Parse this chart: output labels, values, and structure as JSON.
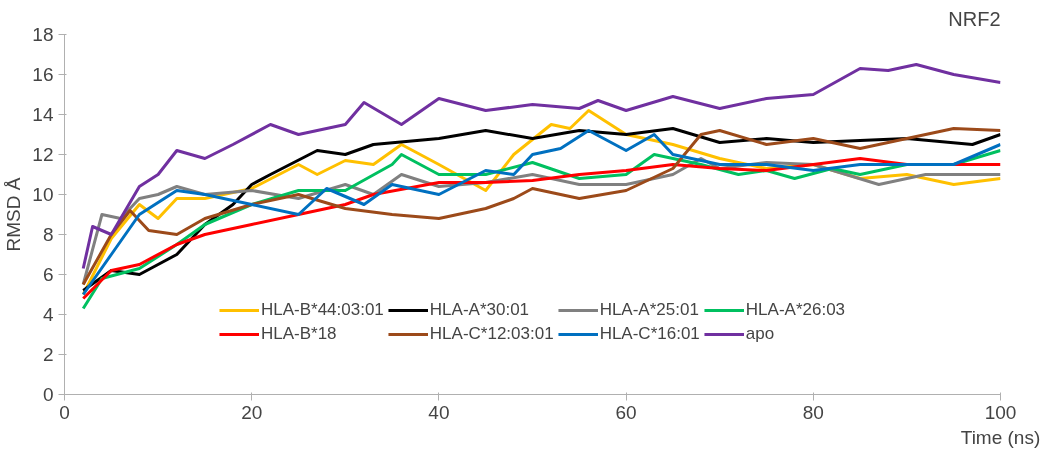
{
  "chart_data": {
    "type": "line",
    "title": "NRF2",
    "xlabel": "Time (ns)",
    "ylabel": "RMSD Å",
    "xlim": [
      0,
      100
    ],
    "xticks": [
      0,
      20,
      40,
      60,
      80,
      100
    ],
    "ylim": [
      0,
      18
    ],
    "yticks": [
      0,
      2,
      4,
      6,
      8,
      10,
      12,
      14,
      16,
      18
    ],
    "grid": false,
    "legend": "bottom",
    "line_style": "solid",
    "marker": "none",
    "series": [
      {
        "name": "HLA-B*44:03:01",
        "color": "#ffc000",
        "x": [
          2,
          5,
          8,
          10,
          12,
          15,
          20,
          25,
          27,
          30,
          33,
          36,
          40,
          45,
          48,
          52,
          54,
          56,
          60,
          65,
          70,
          75,
          80,
          85,
          90,
          95,
          100
        ],
        "values": [
          5,
          7.8,
          9.5,
          8.8,
          9.8,
          9.8,
          10.3,
          11.5,
          11,
          11.7,
          11.5,
          12.5,
          11.5,
          10.2,
          12,
          13.5,
          13.3,
          14.2,
          13,
          12.5,
          11.8,
          11.3,
          11.5,
          10.8,
          11,
          10.5,
          10.8
        ]
      },
      {
        "name": "HLA-A*30:01",
        "color": "#000000",
        "x": [
          2,
          5,
          8,
          12,
          15,
          18,
          20,
          22,
          27,
          30,
          33,
          40,
          45,
          50,
          55,
          60,
          65,
          70,
          75,
          80,
          85,
          90,
          97,
          100
        ],
        "values": [
          5.2,
          6.2,
          6,
          7,
          8.5,
          9.5,
          10.5,
          11,
          12.2,
          12,
          12.5,
          12.8,
          13.2,
          12.8,
          13.2,
          13,
          13.3,
          12.6,
          12.8,
          12.6,
          12.7,
          12.8,
          12.5,
          13
        ]
      },
      {
        "name": "HLA-A*25:01",
        "color": "#808080",
        "x": [
          2,
          4,
          6,
          8,
          10,
          12,
          15,
          20,
          25,
          30,
          33,
          36,
          40,
          45,
          50,
          55,
          60,
          65,
          68,
          70,
          75,
          80,
          87,
          92,
          100
        ],
        "values": [
          5.5,
          9,
          8.8,
          9.8,
          10,
          10.4,
          10,
          10.2,
          9.8,
          10.5,
          10,
          11,
          10.4,
          10.6,
          11,
          10.5,
          10.5,
          11,
          11.8,
          11.3,
          11.6,
          11.5,
          10.5,
          11,
          11
        ]
      },
      {
        "name": "HLA-A*26:03",
        "color": "#00c060",
        "x": [
          2,
          4,
          8,
          12,
          15,
          20,
          25,
          30,
          35,
          36,
          40,
          45,
          50,
          55,
          60,
          63,
          68,
          72,
          75,
          78,
          82,
          85,
          90,
          95,
          100
        ],
        "values": [
          4.3,
          5.8,
          6.3,
          7.5,
          8.5,
          9.5,
          10.2,
          10.2,
          11.5,
          12,
          11,
          11,
          11.6,
          10.8,
          11,
          12,
          11.5,
          11,
          11.2,
          10.8,
          11.3,
          11,
          11.5,
          11.5,
          12.2
        ]
      },
      {
        "name": "HLA-B*18",
        "color": "#ff0000",
        "x": [
          2,
          5,
          8,
          12,
          15,
          20,
          25,
          30,
          33,
          40,
          45,
          50,
          55,
          60,
          65,
          70,
          75,
          80,
          85,
          90,
          95,
          100
        ],
        "values": [
          4.8,
          6.2,
          6.5,
          7.5,
          8,
          8.5,
          9,
          9.5,
          10,
          10.6,
          10.6,
          10.7,
          11,
          11.2,
          11.5,
          11.3,
          11.2,
          11.5,
          11.8,
          11.5,
          11.5,
          11.5
        ]
      },
      {
        "name": "HLA-C*12:03:01",
        "color": "#9c4a1a",
        "x": [
          2,
          5,
          7,
          9,
          12,
          15,
          20,
          25,
          30,
          35,
          40,
          45,
          48,
          50,
          55,
          60,
          65,
          68,
          70,
          75,
          80,
          85,
          90,
          95,
          100
        ],
        "values": [
          5.5,
          8,
          9.2,
          8.2,
          8,
          8.8,
          9.5,
          10,
          9.3,
          9,
          8.8,
          9.3,
          9.8,
          10.3,
          9.8,
          10.2,
          11.3,
          13,
          13.2,
          12.5,
          12.8,
          12.3,
          12.8,
          13.3,
          13.2
        ]
      },
      {
        "name": "HLA-C*16:01",
        "color": "#0070c0",
        "x": [
          2,
          5,
          8,
          12,
          15,
          20,
          25,
          28,
          32,
          35,
          40,
          45,
          48,
          50,
          53,
          56,
          60,
          63,
          65,
          70,
          75,
          80,
          85,
          90,
          95,
          100
        ],
        "values": [
          5,
          7,
          9,
          10.2,
          10,
          9.5,
          9,
          10.3,
          9.5,
          10.5,
          10,
          11.2,
          11,
          12,
          12.3,
          13.2,
          12.2,
          13,
          12,
          11.5,
          11.5,
          11.2,
          11.5,
          11.5,
          11.5,
          12.5
        ]
      },
      {
        "name": "apo",
        "color": "#7030a0",
        "x": [
          2,
          3,
          5,
          8,
          10,
          12,
          15,
          18,
          22,
          25,
          30,
          32,
          36,
          40,
          45,
          50,
          55,
          57,
          60,
          65,
          70,
          75,
          80,
          85,
          88,
          91,
          95,
          100
        ],
        "values": [
          6.3,
          8.4,
          8,
          10.4,
          11,
          12.2,
          11.8,
          12.5,
          13.5,
          13,
          13.5,
          14.6,
          13.5,
          14.8,
          14.2,
          14.5,
          14.3,
          14.7,
          14.2,
          14.9,
          14.3,
          14.8,
          15,
          16.3,
          16.2,
          16.5,
          16,
          15.6
        ]
      }
    ]
  }
}
